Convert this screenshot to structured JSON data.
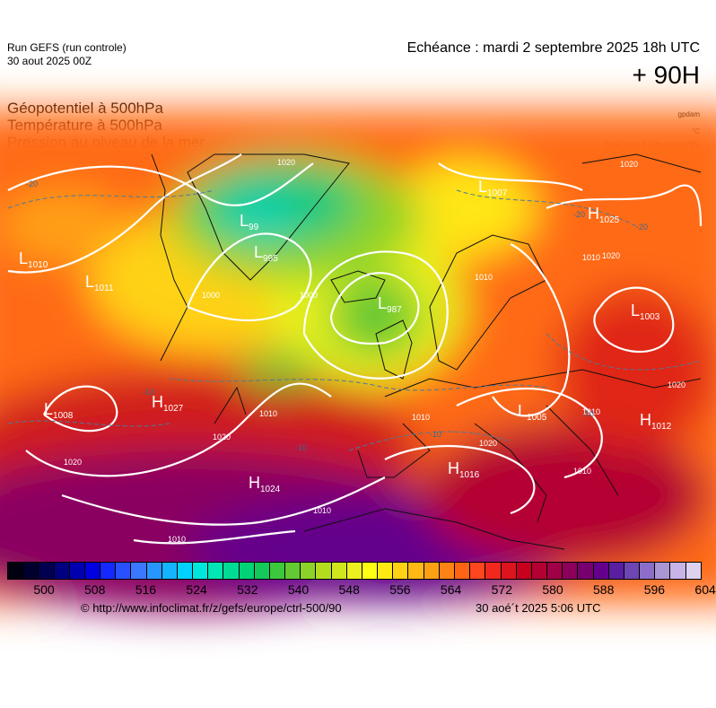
{
  "header": {
    "run_title": "Run GEFS (run controle)",
    "run_date": "30 aout 2025 00Z",
    "forecast_valid": "Echéance : mardi 2 septembre 2025 18h UTC",
    "forecast_hour": "+ 90H"
  },
  "parameters": {
    "geopotential": "Géopotentiel à 500hPa",
    "temperature": "Température à 500hPa",
    "slp": "Pression au niveau de la mer"
  },
  "units": {
    "geopotential": "gpdam",
    "temperature": "°C",
    "minmax": "[Max 1026.8 | Min 986.6] hPa"
  },
  "map": {
    "region": "Europe / North Atlantic",
    "pressure_centers": [
      {
        "type": "L",
        "value": "1010"
      },
      {
        "type": "L",
        "value": "1011"
      },
      {
        "type": "L",
        "value": "99"
      },
      {
        "type": "L",
        "value": "995"
      },
      {
        "type": "L",
        "value": "987"
      },
      {
        "type": "L",
        "value": "1007"
      },
      {
        "type": "H",
        "value": "1025"
      },
      {
        "type": "L",
        "value": "1003"
      },
      {
        "type": "L",
        "value": "1008"
      },
      {
        "type": "H",
        "value": "1027"
      },
      {
        "type": "H",
        "value": "1024"
      },
      {
        "type": "H",
        "value": "1016"
      },
      {
        "type": "L",
        "value": "1005"
      },
      {
        "type": "H",
        "value": "1012"
      }
    ],
    "isobar_labels": [
      "1020",
      "1010",
      "1020",
      "1020",
      "1020",
      "1010",
      "1010",
      "1010",
      "1010",
      "1020",
      "1010",
      "1000",
      "1000",
      "1010",
      "1020",
      "1010",
      "1020"
    ],
    "temperature_labels": [
      "-20",
      "-10",
      "-10",
      "-20",
      "-20",
      "-10",
      "-10"
    ]
  },
  "colorbar": {
    "colors": [
      "#000010",
      "#00002e",
      "#00004f",
      "#000080",
      "#0000b0",
      "#0000e0",
      "#1428ff",
      "#2850ff",
      "#3c78ff",
      "#2896ff",
      "#14b4ff",
      "#00d2ff",
      "#00e6dc",
      "#00e6b4",
      "#00dc96",
      "#00d278",
      "#14c85a",
      "#3cc83c",
      "#64c832",
      "#8cd228",
      "#b4dc1e",
      "#d2e61e",
      "#ebf01e",
      "#ffff14",
      "#ffeb14",
      "#ffd214",
      "#ffb914",
      "#ffa014",
      "#ff8214",
      "#ff6414",
      "#ff461e",
      "#f0281e",
      "#dc141e",
      "#c8001e",
      "#b40032",
      "#a00046",
      "#8c005a",
      "#78006e",
      "#64008c",
      "#5a1ea0",
      "#6e46b4",
      "#8c6ec8",
      "#aa96d2",
      "#c8b4e6",
      "#dcd2f0"
    ],
    "labels": [
      "500",
      "508",
      "516",
      "524",
      "532",
      "540",
      "548",
      "556",
      "564",
      "572",
      "580",
      "588",
      "596",
      "604"
    ]
  },
  "footer": {
    "credit": "© http://www.infoclimat.fr/z/gefs/europe/ctrl-500/90",
    "generated": "30 aoé´t 2025  5:06 UTC"
  }
}
